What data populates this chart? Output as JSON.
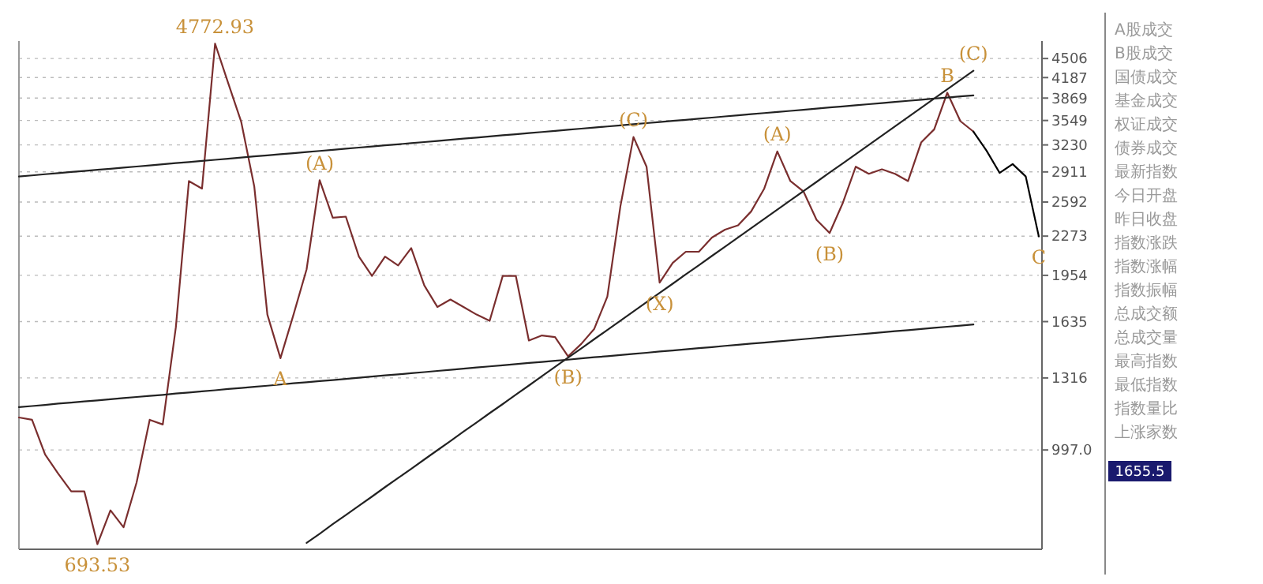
{
  "chart_data": {
    "type": "line",
    "log": true,
    "grid": "y",
    "tick_labels": "y",
    "ylim": [
      680,
      4820
    ],
    "yticks": [
      4506,
      4187,
      3869,
      3549,
      3230,
      2911,
      2592,
      2273,
      1954,
      1635,
      1316,
      {
        "value": 997,
        "label": "997.0"
      }
    ],
    "categories": [
      null,
      null,
      null,
      null,
      null,
      null,
      null,
      null,
      null,
      null,
      null,
      null,
      null,
      null,
      null,
      null,
      null,
      null,
      null,
      null,
      null,
      null,
      null,
      null,
      null,
      null,
      null,
      null,
      null,
      null,
      null,
      null,
      null,
      null,
      null,
      null,
      null,
      null,
      null,
      null,
      null,
      null,
      null,
      null,
      null,
      null,
      null,
      null,
      null,
      null,
      null,
      null,
      null,
      null,
      null,
      null,
      null,
      null,
      null,
      null,
      null,
      null,
      null,
      null,
      null,
      null,
      null,
      null,
      null,
      null,
      null,
      null,
      null,
      null,
      null,
      null,
      null,
      null,
      null
    ],
    "series": [
      {
        "color": "#7a2e2e",
        "values": [
          1130,
          1120,
          980,
          910,
          850,
          850,
          693.53,
          790,
          740,
          880,
          1120,
          1100,
          1600,
          2810,
          2730,
          4772.93,
          4100,
          3530,
          2750,
          1680,
          1420,
          1680,
          2000,
          2820,
          2440,
          2450,
          2100,
          1950,
          2100,
          2030,
          2170,
          1880,
          1730,
          1780,
          1730,
          1680,
          1640,
          1950,
          1950,
          1520,
          1550,
          1540,
          1430,
          1500,
          1590,
          1800,
          2550,
          3330,
          2970,
          1900,
          2050,
          2140,
          2140,
          2260,
          2330,
          2370,
          2500,
          2730,
          3150,
          2810,
          2700,
          2420,
          2300,
          2580,
          2970,
          2890,
          2940,
          2890,
          2810,
          3260,
          3430,
          3950,
          3540,
          3400,
          null,
          null,
          null,
          null,
          null
        ]
      },
      {
        "color": "#222222",
        "values": [
          2860,
          2872,
          2885,
          2897,
          2910,
          2922,
          2935,
          2947,
          2960,
          2972,
          2985,
          2998,
          3011,
          3024,
          3037,
          3050,
          3063,
          3076,
          3090,
          3103,
          3116,
          3129,
          3143,
          3156,
          3170,
          3183,
          3197,
          3211,
          3225,
          3238,
          3252,
          3266,
          3280,
          3295,
          3309,
          3323,
          3337,
          3352,
          3366,
          3381,
          3395,
          3410,
          3424,
          3439,
          3453,
          3468,
          3483,
          3498,
          3513,
          3528,
          3543,
          3558,
          3574,
          3589,
          3605,
          3620,
          3636,
          3652,
          3667,
          3683,
          3699,
          3715,
          3731,
          3747,
          3763,
          3779,
          3795,
          3812,
          3828,
          3845,
          3861,
          3877,
          3894,
          3910,
          null,
          null,
          null,
          null,
          null
        ]
      },
      {
        "color": "#222222",
        "values": [
          1176,
          1181,
          1186,
          1192,
          1197,
          1202,
          1207,
          1212,
          1218,
          1223,
          1228,
          1233,
          1239,
          1244,
          1250,
          1255,
          1261,
          1266,
          1272,
          1277,
          1283,
          1289,
          1294,
          1300,
          1305,
          1311,
          1317,
          1323,
          1329,
          1334,
          1340,
          1346,
          1352,
          1358,
          1364,
          1370,
          1376,
          1382,
          1388,
          1394,
          1400,
          1406,
          1412,
          1419,
          1425,
          1431,
          1437,
          1444,
          1450,
          1457,
          1463,
          1469,
          1476,
          1482,
          1489,
          1495,
          1502,
          1508,
          1515,
          1521,
          1528,
          1535,
          1542,
          1548,
          1555,
          1562,
          1569,
          1576,
          1582,
          1589,
          1596,
          1603,
          1610,
          1617,
          null,
          null,
          null,
          null,
          null
        ]
      },
      {
        "color": "#222222",
        "values": [
          null,
          null,
          null,
          null,
          null,
          null,
          null,
          null,
          null,
          null,
          null,
          null,
          null,
          null,
          null,
          null,
          null,
          null,
          null,
          null,
          null,
          null,
          697,
          722,
          749,
          776,
          804,
          833,
          864,
          895,
          927,
          961,
          996,
          1032,
          1070,
          1108,
          1149,
          1190,
          1234,
          1278,
          1325,
          1373,
          1423,
          1474,
          1528,
          1583,
          1641,
          1700,
          1762,
          1826,
          1892,
          1961,
          2032,
          2106,
          2182,
          2261,
          2343,
          2429,
          2517,
          2608,
          2703,
          2801,
          2903,
          3008,
          3117,
          3231,
          3348,
          3470,
          3596,
          3726,
          3862,
          4002,
          4147,
          4298,
          null,
          null,
          null,
          null,
          null
        ]
      },
      {
        "color": "#000000",
        "values": [
          null,
          null,
          null,
          null,
          null,
          null,
          null,
          null,
          null,
          null,
          null,
          null,
          null,
          null,
          null,
          null,
          null,
          null,
          null,
          null,
          null,
          null,
          null,
          null,
          null,
          null,
          null,
          null,
          null,
          null,
          null,
          null,
          null,
          null,
          null,
          null,
          null,
          null,
          null,
          null,
          null,
          null,
          null,
          null,
          null,
          null,
          null,
          null,
          null,
          null,
          null,
          null,
          null,
          null,
          null,
          null,
          null,
          null,
          null,
          null,
          null,
          null,
          null,
          null,
          null,
          null,
          null,
          null,
          null,
          null,
          null,
          null,
          null,
          3400,
          3160,
          2900,
          3000,
          2860,
          2270
        ]
      }
    ],
    "annotations": [
      {
        "text": "693.53",
        "y": 693.53
      },
      {
        "text": "4772.93",
        "y": 4772.93
      },
      {
        "text": "A",
        "y": 1420
      },
      {
        "text": "(A)",
        "y": 2820
      },
      {
        "text": "(B)",
        "y": 1430
      },
      {
        "text": "(C)",
        "y": 3330
      },
      {
        "text": "(X)",
        "y": 1900
      },
      {
        "text": "(A)",
        "y": 3150
      },
      {
        "text": "(B)",
        "y": 2300
      },
      {
        "text": "B",
        "y": 3950
      },
      {
        "text": "(C)",
        "y": 4298
      },
      {
        "text": "C",
        "y": 2270
      },
      "1655.5",
      "A股成交",
      "B股成交",
      "国债成交",
      "基金成交",
      "权证成交",
      "债券成交",
      "最新指数",
      "今日开盘",
      "昨日收盘",
      "指数涨跌",
      "指数涨幅",
      "指数振幅",
      "总成交额",
      "总成交量",
      "最高指数",
      "最低指数",
      "指数量比",
      "上涨家数"
    ]
  }
}
